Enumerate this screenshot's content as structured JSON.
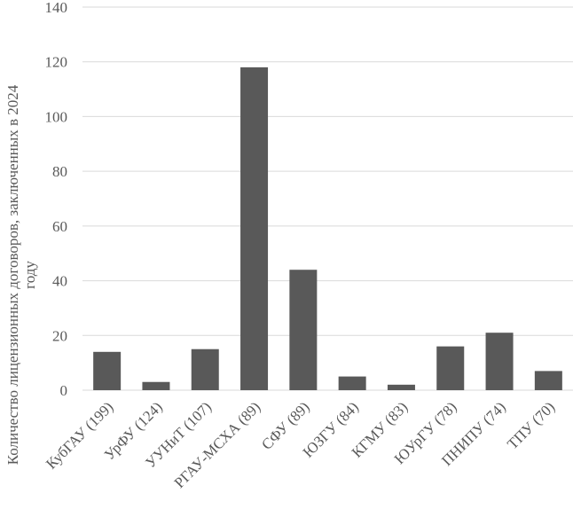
{
  "chart_data": {
    "type": "bar",
    "title": "",
    "xlabel": "",
    "ylabel": "Количество лицензионных договоров, заключенных в 2024 году",
    "ylabel_lines": [
      "Количество лицензионных договоров, заключенных в 2024",
      "году"
    ],
    "categories": [
      "КубГАУ (199)",
      "УрФУ (124)",
      "УУНиТ (107)",
      "РГАУ-МСХА (89)",
      "СФУ (89)",
      "ЮЗГУ (84)",
      "КГМУ (83)",
      "ЮУрГУ (78)",
      "ПНИПУ (74)",
      "ТПУ (70)"
    ],
    "values": [
      14,
      3,
      15,
      118,
      44,
      5,
      2,
      16,
      21,
      7
    ],
    "ylim": [
      0,
      140
    ],
    "yticks": [
      0,
      20,
      40,
      60,
      80,
      100,
      120,
      140
    ],
    "grid": true,
    "legend": "none",
    "bar_color": "#595959",
    "grid_color": "#d9d9d9"
  }
}
